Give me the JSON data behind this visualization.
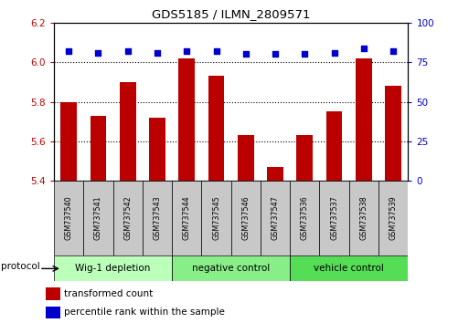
{
  "title": "GDS5185 / ILMN_2809571",
  "samples": [
    "GSM737540",
    "GSM737541",
    "GSM737542",
    "GSM737543",
    "GSM737544",
    "GSM737545",
    "GSM737546",
    "GSM737547",
    "GSM737536",
    "GSM737537",
    "GSM737538",
    "GSM737539"
  ],
  "transformed_counts": [
    5.8,
    5.73,
    5.9,
    5.72,
    6.02,
    5.93,
    5.63,
    5.47,
    5.63,
    5.75,
    6.02,
    5.88
  ],
  "percentile_ranks": [
    82,
    81,
    82,
    81,
    82,
    82,
    80,
    80,
    80,
    81,
    84,
    82
  ],
  "groups": [
    {
      "label": "Wig-1 depletion",
      "indices": [
        0,
        1,
        2,
        3
      ],
      "color": "#bbffbb"
    },
    {
      "label": "negative control",
      "indices": [
        4,
        5,
        6,
        7
      ],
      "color": "#88ee88"
    },
    {
      "label": "vehicle control",
      "indices": [
        8,
        9,
        10,
        11
      ],
      "color": "#55dd55"
    }
  ],
  "ylim_left": [
    5.4,
    6.2
  ],
  "ylim_right": [
    0,
    100
  ],
  "bar_color": "#bb0000",
  "dot_color": "#0000cc",
  "bar_bottom": 5.4,
  "yticks_left": [
    5.4,
    5.6,
    5.8,
    6.0,
    6.2
  ],
  "yticks_right": [
    0,
    25,
    50,
    75,
    100
  ],
  "grid_values": [
    5.6,
    5.8,
    6.0
  ],
  "bar_width": 0.55,
  "legend_red_label": "transformed count",
  "legend_blue_label": "percentile rank within the sample",
  "protocol_label": "protocol",
  "sample_box_color": "#c8c8c8"
}
